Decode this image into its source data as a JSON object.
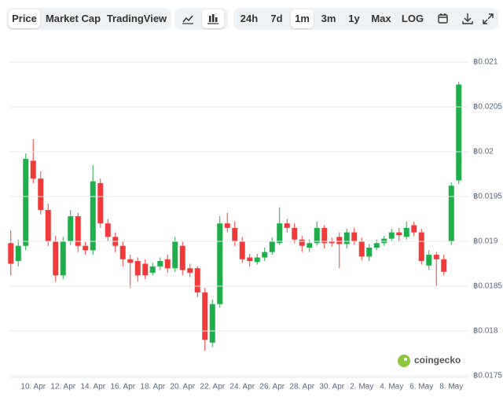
{
  "toolbar": {
    "tabs": [
      "Price",
      "Market Cap",
      "TradingView"
    ],
    "ranges": [
      "24h",
      "7d",
      "1m",
      "3m",
      "1y",
      "Max",
      "LOG"
    ]
  },
  "watermark": "coingecko",
  "chart_data": {
    "type": "candlestick",
    "categories": [
      null,
      null,
      null,
      "10. Apr",
      null,
      null,
      null,
      "12. Apr",
      null,
      null,
      null,
      "14. Apr",
      null,
      null,
      null,
      "16. Apr",
      null,
      null,
      null,
      "18. Apr",
      null,
      null,
      null,
      "20. Apr",
      null,
      null,
      null,
      "22. Apr",
      null,
      null,
      null,
      "24. Apr",
      null,
      null,
      null,
      "26. Apr",
      null,
      null,
      null,
      "28. Apr",
      null,
      null,
      null,
      "30. Apr",
      null,
      null,
      null,
      "2. May",
      null,
      null,
      null,
      "4. May",
      null,
      null,
      null,
      "6. May",
      null,
      null,
      null,
      "8. May",
      null
    ],
    "open": [
      0.01898,
      0.01878,
      0.01895,
      0.0199,
      0.0197,
      0.01935,
      0.019,
      0.01862,
      0.019,
      0.01928,
      0.01895,
      0.0189,
      0.01965,
      0.0192,
      0.01905,
      0.01895,
      0.0188,
      0.01878,
      0.01875,
      0.01865,
      0.01872,
      0.0188,
      0.0187,
      0.01895,
      0.0187,
      0.0187,
      0.01843,
      0.01787,
      0.0183,
      0.0192,
      0.01915,
      0.019,
      0.01882,
      0.01877,
      0.01882,
      0.01888,
      0.01898,
      0.0192,
      0.01915,
      0.01902,
      0.01893,
      0.01898,
      0.01915,
      0.019,
      0.01905,
      0.01897,
      0.0191,
      0.019,
      0.01883,
      0.01893,
      0.01898,
      0.01903,
      0.0191,
      0.01905,
      0.01918,
      0.0191,
      0.01873,
      0.01885,
      0.0188,
      0.019,
      0.01968
    ],
    "high": [
      0.01912,
      0.01902,
      0.01998,
      0.02014,
      0.01978,
      0.01942,
      0.01906,
      0.01905,
      0.01935,
      0.01932,
      0.019,
      0.01985,
      0.0197,
      0.01925,
      0.0191,
      0.019,
      0.01885,
      0.01882,
      0.0188,
      0.01876,
      0.01882,
      0.01885,
      0.01905,
      0.019,
      0.01875,
      0.01872,
      0.01848,
      0.01835,
      0.01928,
      0.01932,
      0.01922,
      0.01905,
      0.01886,
      0.01886,
      0.01893,
      0.01904,
      0.01938,
      0.01925,
      0.0192,
      0.01906,
      0.01902,
      0.01922,
      0.01918,
      0.01904,
      0.0191,
      0.01914,
      0.01915,
      0.01904,
      0.01897,
      0.01902,
      0.01906,
      0.01914,
      0.01915,
      0.01922,
      0.01922,
      0.01914,
      0.0189,
      0.01888,
      0.01885,
      0.01966,
      0.02078
    ],
    "low": [
      0.01862,
      0.01872,
      0.0189,
      0.01965,
      0.0193,
      0.01895,
      0.01855,
      0.01858,
      0.01896,
      0.01888,
      0.01885,
      0.01885,
      0.01915,
      0.019,
      0.01888,
      0.01872,
      0.01848,
      0.01855,
      0.01858,
      0.01862,
      0.01868,
      0.01865,
      0.01866,
      0.01862,
      0.0186,
      0.01838,
      0.01778,
      0.01782,
      0.01826,
      0.0191,
      0.01895,
      0.01876,
      0.01872,
      0.01874,
      0.01878,
      0.01885,
      0.01896,
      0.0191,
      0.01898,
      0.01888,
      0.01888,
      0.01895,
      0.01892,
      0.01894,
      0.0187,
      0.01892,
      0.01896,
      0.01879,
      0.01878,
      0.0189,
      0.01895,
      0.019,
      0.019,
      0.01902,
      0.01906,
      0.01874,
      0.01868,
      0.0185,
      0.01862,
      0.01896,
      0.01964
    ],
    "close": [
      0.01875,
      0.01895,
      0.01992,
      0.0197,
      0.01935,
      0.019,
      0.01862,
      0.019,
      0.01928,
      0.01895,
      0.0189,
      0.01967,
      0.0192,
      0.01905,
      0.01895,
      0.0188,
      0.01876,
      0.01862,
      0.01862,
      0.01872,
      0.01878,
      0.0187,
      0.019,
      0.01868,
      0.01865,
      0.01843,
      0.0179,
      0.0183,
      0.0192,
      0.01915,
      0.019,
      0.0188,
      0.01878,
      0.01882,
      0.01888,
      0.019,
      0.0192,
      0.01915,
      0.01902,
      0.01895,
      0.01898,
      0.01915,
      0.01898,
      0.01898,
      0.01897,
      0.0191,
      0.019,
      0.01883,
      0.01893,
      0.01898,
      0.01903,
      0.0191,
      0.01907,
      0.01915,
      0.0191,
      0.01878,
      0.01885,
      0.0188,
      0.01866,
      0.01962,
      0.02075
    ],
    "up_color": "#1fae4b",
    "down_color": "#f03b3b",
    "ylim": [
      0.0175,
      0.021
    ],
    "yticks": [
      {
        "value": 0.0175,
        "label": "฿0.0175"
      },
      {
        "value": 0.018,
        "label": "฿0.018"
      },
      {
        "value": 0.0185,
        "label": "฿0.0185"
      },
      {
        "value": 0.019,
        "label": "฿0.019"
      },
      {
        "value": 0.0195,
        "label": "฿0.0195"
      },
      {
        "value": 0.02,
        "label": "฿0.02"
      },
      {
        "value": 0.0205,
        "label": "฿0.0205"
      },
      {
        "value": 0.021,
        "label": "฿0.021"
      }
    ],
    "grid": true
  }
}
